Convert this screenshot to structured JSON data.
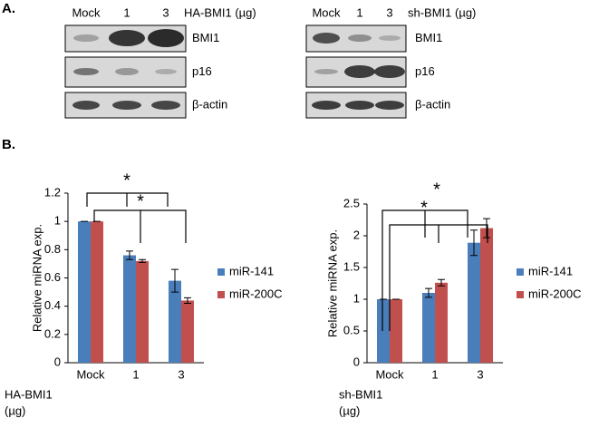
{
  "panel_a": {
    "label": "A.",
    "blots": [
      {
        "lanes": [
          "Mock",
          "1",
          "3"
        ],
        "treatment": "HA-BMI1 (µg)",
        "rows": [
          "BMI1",
          "p16",
          "β-actin"
        ]
      },
      {
        "lanes": [
          "Mock",
          "1",
          "3"
        ],
        "treatment": "sh-BMI1 (µg)",
        "rows": [
          "BMI1",
          "p16",
          "β-actin"
        ]
      }
    ]
  },
  "panel_b": {
    "label": "B."
  },
  "chart_data": [
    {
      "type": "bar",
      "y_label": "Relative miRNA exp.",
      "x_label": [
        "HA-BMI1",
        "(µg)"
      ],
      "categories": [
        "Mock",
        "1",
        "3"
      ],
      "series": [
        {
          "name": "miR-141",
          "color": "#4a7ebb",
          "values": [
            1,
            0.76,
            0.58
          ],
          "errors": [
            0,
            0.03,
            0.08
          ]
        },
        {
          "name": "miR-200C",
          "color": "#c0504d",
          "values": [
            1,
            0.72,
            0.44
          ],
          "errors": [
            0,
            0.01,
            0.02
          ]
        }
      ],
      "ylim": [
        0,
        1.2
      ],
      "yticks": [
        0,
        0.2,
        0.4,
        0.6,
        0.8,
        1,
        1.2
      ],
      "annotations": [
        "*",
        "*"
      ]
    },
    {
      "type": "bar",
      "y_label": "Relative miRNA exp.",
      "x_label": [
        "sh-BMI1",
        "(µg)"
      ],
      "categories": [
        "Mock",
        "1",
        "3"
      ],
      "series": [
        {
          "name": "miR-141",
          "color": "#4a7ebb",
          "values": [
            1,
            1.1,
            1.89
          ],
          "errors": [
            0,
            0.07,
            0.2
          ]
        },
        {
          "name": "miR-200C",
          "color": "#c0504d",
          "values": [
            1,
            1.26,
            2.12
          ],
          "errors": [
            0,
            0.05,
            0.15
          ]
        }
      ],
      "ylim": [
        0,
        2.5
      ],
      "yticks": [
        0,
        0.5,
        1,
        1.5,
        2,
        2.5
      ],
      "annotations": [
        "*",
        "*"
      ]
    }
  ]
}
